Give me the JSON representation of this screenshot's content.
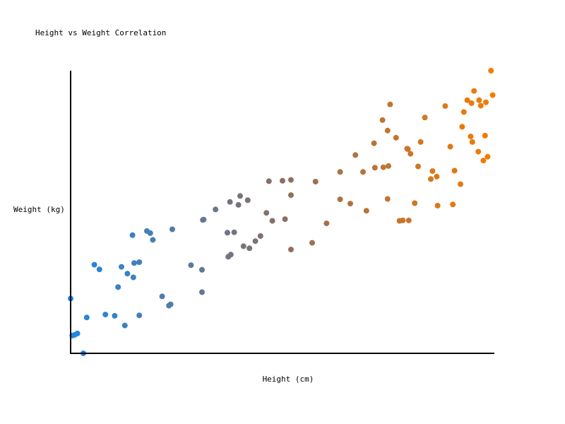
{
  "chart_data": {
    "type": "scatter",
    "title": "Height vs Weight Correlation",
    "xlabel": "Height (cm)",
    "ylabel": "Weight (kg)",
    "xlim": [
      150,
      200
    ],
    "ylim": [
      45,
      112
    ],
    "grid": false,
    "legend": "none",
    "color_gradient": {
      "low": "#1e88e5",
      "mid": "#8d6e63",
      "high": "#f57c00"
    },
    "series": [
      {
        "points": [
          [
            150.0,
            58.0
          ],
          [
            150.2,
            49.2
          ],
          [
            150.5,
            49.4
          ],
          [
            150.8,
            49.7
          ],
          [
            151.5,
            45.0
          ],
          [
            151.9,
            53.5
          ],
          [
            152.8,
            66.0
          ],
          [
            153.4,
            64.9
          ],
          [
            154.1,
            54.2
          ],
          [
            155.2,
            53.9
          ],
          [
            155.6,
            60.7
          ],
          [
            156.0,
            65.5
          ],
          [
            156.4,
            51.6
          ],
          [
            156.7,
            63.9
          ],
          [
            157.3,
            73.0
          ],
          [
            157.4,
            63.0
          ],
          [
            157.5,
            66.4
          ],
          [
            158.1,
            66.6
          ],
          [
            158.1,
            54.0
          ],
          [
            159.0,
            74.0
          ],
          [
            159.4,
            73.5
          ],
          [
            159.7,
            71.9
          ],
          [
            160.8,
            58.5
          ],
          [
            161.6,
            56.3
          ],
          [
            161.8,
            56.6
          ],
          [
            162.0,
            74.4
          ],
          [
            164.2,
            65.9
          ],
          [
            165.5,
            64.8
          ],
          [
            165.5,
            59.5
          ],
          [
            165.6,
            76.6
          ],
          [
            165.7,
            76.7
          ],
          [
            167.1,
            79.1
          ],
          [
            168.5,
            73.6
          ],
          [
            168.6,
            67.9
          ],
          [
            168.8,
            80.9
          ],
          [
            168.9,
            68.4
          ],
          [
            169.3,
            73.7
          ],
          [
            169.8,
            80.2
          ],
          [
            170.0,
            82.3
          ],
          [
            170.4,
            70.4
          ],
          [
            170.9,
            81.3
          ],
          [
            171.1,
            69.9
          ],
          [
            171.8,
            71.6
          ],
          [
            172.4,
            72.8
          ],
          [
            173.1,
            78.3
          ],
          [
            173.4,
            85.8
          ],
          [
            173.8,
            76.4
          ],
          [
            175.0,
            85.9
          ],
          [
            175.3,
            76.8
          ],
          [
            176.0,
            82.5
          ],
          [
            181.8,
            81.5
          ],
          [
            176.0,
            69.6
          ],
          [
            176.0,
            86.1
          ],
          [
            178.5,
            71.2
          ],
          [
            178.9,
            85.7
          ],
          [
            180.2,
            75.8
          ],
          [
            181.8,
            88.0
          ],
          [
            183.6,
            92.0
          ],
          [
            183.0,
            80.5
          ],
          [
            184.5,
            88.0
          ],
          [
            184.9,
            78.8
          ],
          [
            185.8,
            94.8
          ],
          [
            185.9,
            89.0
          ],
          [
            186.9,
            89.1
          ],
          [
            187.4,
            81.6
          ],
          [
            187.4,
            97.8
          ],
          [
            187.5,
            89.4
          ],
          [
            188.4,
            96.1
          ],
          [
            188.8,
            76.4
          ],
          [
            191.0,
            89.3
          ],
          [
            189.2,
            76.5
          ],
          [
            190.1,
            92.3
          ],
          [
            187.7,
            104.0
          ],
          [
            190.6,
            80.6
          ],
          [
            196.0,
            85.1
          ],
          [
            186.8,
            100.3
          ],
          [
            189.8,
            93.4
          ],
          [
            189.9,
            76.5
          ],
          [
            189.7,
            93.5
          ],
          [
            193.3,
            80.0
          ],
          [
            191.3,
            95.1
          ],
          [
            199.2,
            91.6
          ],
          [
            191.8,
            100.9
          ],
          [
            192.5,
            86.3
          ],
          [
            192.7,
            88.2
          ],
          [
            193.2,
            86.9
          ],
          [
            194.8,
            94.0
          ],
          [
            195.1,
            80.3
          ],
          [
            195.3,
            88.3
          ],
          [
            196.2,
            98.7
          ],
          [
            194.2,
            103.6
          ],
          [
            196.8,
            105.0
          ],
          [
            197.6,
            107.2
          ],
          [
            197.3,
            104.3
          ],
          [
            197.4,
            95.1
          ],
          [
            198.1,
            92.8
          ],
          [
            198.7,
            90.7
          ],
          [
            198.9,
            96.6
          ],
          [
            198.4,
            103.7
          ],
          [
            199.6,
            112.0
          ],
          [
            198.2,
            105.0
          ],
          [
            199.0,
            104.5
          ],
          [
            196.4,
            102.2
          ],
          [
            197.2,
            96.4
          ],
          [
            199.8,
            106.2
          ]
        ]
      }
    ]
  }
}
